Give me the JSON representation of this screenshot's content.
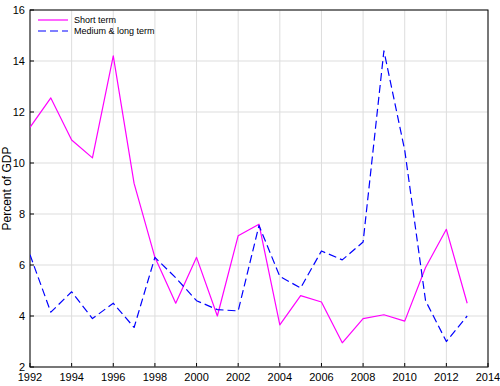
{
  "chart_data": {
    "type": "line",
    "y_label": "Percent of GDP",
    "x": [
      1992,
      1993,
      1994,
      1995,
      1996,
      1997,
      1998,
      1999,
      2000,
      2001,
      2002,
      2003,
      2004,
      2005,
      2006,
      2007,
      2008,
      2009,
      2010,
      2011,
      2012,
      2013
    ],
    "series": [
      {
        "name": "Short term",
        "color": "#ff00ff",
        "line_style": "solid",
        "values": [
          11.4,
          12.55,
          10.9,
          10.2,
          14.2,
          9.2,
          6.3,
          4.5,
          6.3,
          4.0,
          7.15,
          7.6,
          3.65,
          4.8,
          4.55,
          2.95,
          3.9,
          4.05,
          3.8,
          5.9,
          7.4,
          4.5
        ]
      },
      {
        "name": "Medium & long term",
        "color": "#0000ff",
        "line_style": "dashed",
        "values": [
          6.4,
          4.15,
          4.95,
          3.9,
          4.5,
          3.55,
          6.3,
          5.5,
          4.6,
          4.25,
          4.2,
          7.55,
          5.55,
          5.1,
          6.55,
          6.2,
          6.9,
          14.4,
          10.5,
          4.6,
          3.0,
          4.0
        ]
      }
    ],
    "xlim": [
      1992,
      2014
    ],
    "xticks": [
      1992,
      1994,
      1996,
      1998,
      2000,
      2002,
      2004,
      2006,
      2008,
      2010,
      2012,
      2014
    ],
    "ylim": [
      2,
      16
    ],
    "yticks": [
      2,
      4,
      6,
      8,
      10,
      12,
      14,
      16
    ],
    "grid": true,
    "legend": "upper left"
  }
}
